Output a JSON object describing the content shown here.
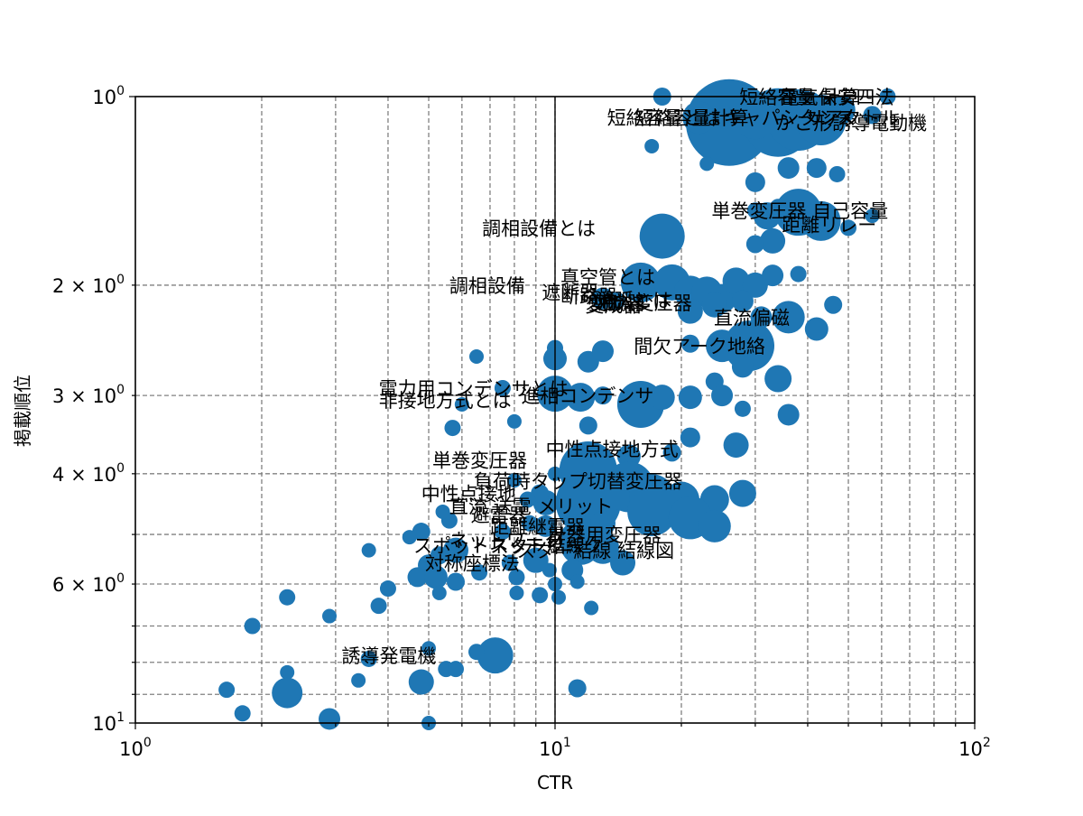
{
  "chart_data": {
    "type": "scatter",
    "title": "",
    "xlabel": "CTR",
    "ylabel": "掲載順位",
    "x_scale": "log",
    "y_scale": "log",
    "y_inverted": true,
    "xlim": [
      1,
      100
    ],
    "ylim": [
      10,
      1
    ],
    "grid": true,
    "legend": "none",
    "color": "#1f77b4",
    "x_ticks": [
      {
        "value": 1,
        "base": "10",
        "exp": "0"
      },
      {
        "value": 10,
        "base": "10",
        "exp": "1"
      },
      {
        "value": 100,
        "base": "10",
        "exp": "2"
      }
    ],
    "y_ticks": [
      {
        "value": 1,
        "base": "10",
        "exp": "0"
      },
      {
        "value": 2,
        "base": "2 × 10",
        "exp": "0"
      },
      {
        "value": 3,
        "base": "3 × 10",
        "exp": "0"
      },
      {
        "value": 4,
        "base": "4 × 10",
        "exp": "0"
      },
      {
        "value": 6,
        "base": "6 × 10",
        "exp": "0"
      },
      {
        "value": 10,
        "base": "10",
        "exp": "1"
      }
    ],
    "points": [
      {
        "x": 26,
        "y": 1.1,
        "s": 48
      },
      {
        "x": 34,
        "y": 1.1,
        "s": 38
      },
      {
        "x": 38,
        "y": 1.09,
        "s": 34
      },
      {
        "x": 43,
        "y": 1.09,
        "s": 28
      },
      {
        "x": 30,
        "y": 1.08,
        "s": 24
      },
      {
        "x": 48,
        "y": 1.05,
        "s": 16
      },
      {
        "x": 22,
        "y": 1.08,
        "s": 18
      },
      {
        "x": 57,
        "y": 1.07,
        "s": 10
      },
      {
        "x": 18,
        "y": 1.0,
        "s": 10
      },
      {
        "x": 62,
        "y": 1.0,
        "s": 9
      },
      {
        "x": 41,
        "y": 1.01,
        "s": 8
      },
      {
        "x": 17,
        "y": 1.2,
        "s": 8
      },
      {
        "x": 23,
        "y": 1.28,
        "s": 8
      },
      {
        "x": 36,
        "y": 1.3,
        "s": 12
      },
      {
        "x": 42,
        "y": 1.3,
        "s": 11
      },
      {
        "x": 47,
        "y": 1.33,
        "s": 9
      },
      {
        "x": 30,
        "y": 1.37,
        "s": 11
      },
      {
        "x": 38,
        "y": 1.53,
        "s": 26
      },
      {
        "x": 43,
        "y": 1.58,
        "s": 22
      },
      {
        "x": 32,
        "y": 1.55,
        "s": 15
      },
      {
        "x": 50,
        "y": 1.62,
        "s": 9
      },
      {
        "x": 57,
        "y": 1.55,
        "s": 8
      },
      {
        "x": 30,
        "y": 1.52,
        "s": 9
      },
      {
        "x": 34,
        "y": 1.5,
        "s": 9
      },
      {
        "x": 33,
        "y": 1.7,
        "s": 14
      },
      {
        "x": 30,
        "y": 1.72,
        "s": 10
      },
      {
        "x": 18,
        "y": 1.67,
        "s": 25
      },
      {
        "x": 16,
        "y": 1.98,
        "s": 22
      },
      {
        "x": 19,
        "y": 1.98,
        "s": 20
      },
      {
        "x": 21,
        "y": 2.05,
        "s": 18
      },
      {
        "x": 23,
        "y": 2.05,
        "s": 17
      },
      {
        "x": 25,
        "y": 2.1,
        "s": 16
      },
      {
        "x": 27,
        "y": 1.97,
        "s": 15
      },
      {
        "x": 30,
        "y": 2.0,
        "s": 14
      },
      {
        "x": 33,
        "y": 1.93,
        "s": 12
      },
      {
        "x": 24,
        "y": 2.15,
        "s": 14
      },
      {
        "x": 21,
        "y": 2.2,
        "s": 14
      },
      {
        "x": 13,
        "y": 2.1,
        "s": 12
      },
      {
        "x": 14,
        "y": 2.12,
        "s": 10
      },
      {
        "x": 28,
        "y": 2.12,
        "s": 12
      },
      {
        "x": 36,
        "y": 2.25,
        "s": 18
      },
      {
        "x": 42,
        "y": 2.35,
        "s": 13
      },
      {
        "x": 46,
        "y": 2.15,
        "s": 10
      },
      {
        "x": 31,
        "y": 2.25,
        "s": 12
      },
      {
        "x": 38,
        "y": 1.92,
        "s": 9
      },
      {
        "x": 29,
        "y": 2.5,
        "s": 28
      },
      {
        "x": 25,
        "y": 2.5,
        "s": 18
      },
      {
        "x": 21,
        "y": 2.48,
        "s": 10
      },
      {
        "x": 28,
        "y": 2.7,
        "s": 12
      },
      {
        "x": 34,
        "y": 2.82,
        "s": 15
      },
      {
        "x": 24,
        "y": 2.85,
        "s": 10
      },
      {
        "x": 12,
        "y": 2.65,
        "s": 12
      },
      {
        "x": 10,
        "y": 2.52,
        "s": 9
      },
      {
        "x": 13,
        "y": 2.55,
        "s": 12
      },
      {
        "x": 10,
        "y": 2.62,
        "s": 13
      },
      {
        "x": 6.5,
        "y": 2.6,
        "s": 8
      },
      {
        "x": 10,
        "y": 2.98,
        "s": 20
      },
      {
        "x": 11.5,
        "y": 3.02,
        "s": 16
      },
      {
        "x": 16,
        "y": 3.1,
        "s": 26
      },
      {
        "x": 18,
        "y": 3.02,
        "s": 14
      },
      {
        "x": 21,
        "y": 3.02,
        "s": 13
      },
      {
        "x": 25,
        "y": 3.0,
        "s": 12
      },
      {
        "x": 13,
        "y": 3.0,
        "s": 10
      },
      {
        "x": 36,
        "y": 3.22,
        "s": 12
      },
      {
        "x": 28,
        "y": 3.15,
        "s": 9
      },
      {
        "x": 7.5,
        "y": 2.92,
        "s": 9
      },
      {
        "x": 6,
        "y": 3.1,
        "s": 8
      },
      {
        "x": 12,
        "y": 3.35,
        "s": 10
      },
      {
        "x": 8,
        "y": 3.3,
        "s": 8
      },
      {
        "x": 5.7,
        "y": 3.38,
        "s": 9
      },
      {
        "x": 27,
        "y": 3.6,
        "s": 14
      },
      {
        "x": 21,
        "y": 3.5,
        "s": 11
      },
      {
        "x": 15,
        "y": 3.75,
        "s": 13
      },
      {
        "x": 19,
        "y": 3.7,
        "s": 10
      },
      {
        "x": 12,
        "y": 3.95,
        "s": 32
      },
      {
        "x": 12,
        "y": 4.45,
        "s": 36
      },
      {
        "x": 15,
        "y": 4.2,
        "s": 28
      },
      {
        "x": 17,
        "y": 4.35,
        "s": 25
      },
      {
        "x": 20,
        "y": 4.4,
        "s": 20
      },
      {
        "x": 24,
        "y": 4.4,
        "s": 16
      },
      {
        "x": 28,
        "y": 4.3,
        "s": 15
      },
      {
        "x": 17,
        "y": 4.6,
        "s": 27
      },
      {
        "x": 21,
        "y": 4.7,
        "s": 24
      },
      {
        "x": 24,
        "y": 4.85,
        "s": 18
      },
      {
        "x": 13,
        "y": 4.8,
        "s": 14
      },
      {
        "x": 9.5,
        "y": 4.45,
        "s": 14
      },
      {
        "x": 9.2,
        "y": 4.3,
        "s": 10
      },
      {
        "x": 8.6,
        "y": 4.4,
        "s": 9
      },
      {
        "x": 8,
        "y": 4.1,
        "s": 8
      },
      {
        "x": 10,
        "y": 4.0,
        "s": 8
      },
      {
        "x": 11.5,
        "y": 5.2,
        "s": 22
      },
      {
        "x": 13,
        "y": 5.25,
        "s": 18
      },
      {
        "x": 14.5,
        "y": 5.55,
        "s": 14
      },
      {
        "x": 11,
        "y": 5.0,
        "s": 12
      },
      {
        "x": 9.5,
        "y": 4.85,
        "s": 12
      },
      {
        "x": 11,
        "y": 5.7,
        "s": 12
      },
      {
        "x": 9,
        "y": 5.5,
        "s": 14
      },
      {
        "x": 5.8,
        "y": 5.3,
        "s": 14
      },
      {
        "x": 5,
        "y": 5.6,
        "s": 12
      },
      {
        "x": 5.3,
        "y": 5.4,
        "s": 10
      },
      {
        "x": 4.7,
        "y": 5.85,
        "s": 11
      },
      {
        "x": 5.2,
        "y": 5.85,
        "s": 13
      },
      {
        "x": 5.8,
        "y": 5.95,
        "s": 10
      },
      {
        "x": 6.6,
        "y": 5.75,
        "s": 9
      },
      {
        "x": 5.3,
        "y": 6.2,
        "s": 8
      },
      {
        "x": 4.8,
        "y": 4.95,
        "s": 10
      },
      {
        "x": 4.5,
        "y": 5.05,
        "s": 8
      },
      {
        "x": 5.6,
        "y": 4.75,
        "s": 9
      },
      {
        "x": 5.4,
        "y": 4.6,
        "s": 8
      },
      {
        "x": 7.5,
        "y": 4.95,
        "s": 9
      },
      {
        "x": 8.7,
        "y": 4.8,
        "s": 9
      },
      {
        "x": 7.8,
        "y": 5.55,
        "s": 9
      },
      {
        "x": 8.1,
        "y": 5.85,
        "s": 9
      },
      {
        "x": 9.2,
        "y": 6.25,
        "s": 9
      },
      {
        "x": 8.1,
        "y": 6.2,
        "s": 8
      },
      {
        "x": 10,
        "y": 6.0,
        "s": 8
      },
      {
        "x": 10.2,
        "y": 6.3,
        "s": 8
      },
      {
        "x": 9.7,
        "y": 5.7,
        "s": 8
      },
      {
        "x": 11.3,
        "y": 5.95,
        "s": 8
      },
      {
        "x": 3.6,
        "y": 5.3,
        "s": 8
      },
      {
        "x": 4.0,
        "y": 6.1,
        "s": 9
      },
      {
        "x": 3.8,
        "y": 6.5,
        "s": 9
      },
      {
        "x": 2.3,
        "y": 6.3,
        "s": 9
      },
      {
        "x": 2.9,
        "y": 6.75,
        "s": 8
      },
      {
        "x": 1.9,
        "y": 7.0,
        "s": 9
      },
      {
        "x": 12.2,
        "y": 6.55,
        "s": 8
      },
      {
        "x": 7.2,
        "y": 7.8,
        "s": 20
      },
      {
        "x": 6.5,
        "y": 7.7,
        "s": 9
      },
      {
        "x": 5.0,
        "y": 7.6,
        "s": 8
      },
      {
        "x": 5.5,
        "y": 8.2,
        "s": 9
      },
      {
        "x": 5.8,
        "y": 8.2,
        "s": 9
      },
      {
        "x": 3.6,
        "y": 7.9,
        "s": 9
      },
      {
        "x": 2.3,
        "y": 8.3,
        "s": 8
      },
      {
        "x": 3.4,
        "y": 8.55,
        "s": 8
      },
      {
        "x": 4.8,
        "y": 8.6,
        "s": 14
      },
      {
        "x": 2.3,
        "y": 8.95,
        "s": 17
      },
      {
        "x": 1.65,
        "y": 8.85,
        "s": 9
      },
      {
        "x": 11.3,
        "y": 8.8,
        "s": 10
      },
      {
        "x": 1.8,
        "y": 9.65,
        "s": 9
      },
      {
        "x": 2.9,
        "y": 9.85,
        "s": 12
      },
      {
        "x": 5,
        "y": 10.0,
        "s": 8
      }
    ],
    "labels": [
      {
        "text": "電気保安四法",
        "x": 34.4,
        "y": 1.0
      },
      {
        "text": "短絡容量 計算",
        "x": 27.5,
        "y": 1.0
      },
      {
        "text": "短絡容量とは",
        "x": 13.3,
        "y": 1.08
      },
      {
        "text": "短絡容量計算",
        "x": 15.5,
        "y": 1.08
      },
      {
        "text": "キャパシタンス",
        "x": 25.2,
        "y": 1.08
      },
      {
        "text": "リアクトル",
        "x": 39.5,
        "y": 1.08
      },
      {
        "text": "かご形誘導電動機",
        "x": 33.5,
        "y": 1.1
      },
      {
        "text": "単巻変圧器 自己容量",
        "x": 23.6,
        "y": 1.52
      },
      {
        "text": "距離リレー",
        "x": 34.7,
        "y": 1.6
      },
      {
        "text": "調相設備とは",
        "x": 6.7,
        "y": 1.62
      },
      {
        "text": "調相設備",
        "x": 5.6,
        "y": 2.0
      },
      {
        "text": "真空管とは",
        "x": 10.3,
        "y": 1.94
      },
      {
        "text": "遮断器",
        "x": 9.3,
        "y": 2.05
      },
      {
        "text": "断路器",
        "x": 10.3,
        "y": 2.08
      },
      {
        "text": "消弧とは",
        "x": 12.5,
        "y": 2.11
      },
      {
        "text": "変流器",
        "x": 12.0,
        "y": 2.13
      },
      {
        "text": "変成器",
        "x": 11.8,
        "y": 2.15
      },
      {
        "text": "油入変圧器",
        "x": 12.6,
        "y": 2.13
      },
      {
        "text": "直流偏磁",
        "x": 23.9,
        "y": 2.25
      },
      {
        "text": "間欠アーク地絡",
        "x": 15.4,
        "y": 2.5
      },
      {
        "text": "電力用コンデンサとは",
        "x": 3.8,
        "y": 2.92
      },
      {
        "text": "進相コンデンサ",
        "x": 8.3,
        "y": 3.0
      },
      {
        "text": "非接地方式とは",
        "x": 3.8,
        "y": 3.05
      },
      {
        "text": "中性点接地方式",
        "x": 9.5,
        "y": 3.65
      },
      {
        "text": "単巻変圧器",
        "x": 5.1,
        "y": 3.8
      },
      {
        "text": "負荷時タップ切替変圧器",
        "x": 6.4,
        "y": 4.1
      },
      {
        "text": "中性点接地",
        "x": 4.8,
        "y": 4.3
      },
      {
        "text": "直流 送電 メリット",
        "x": 5.6,
        "y": 4.5
      },
      {
        "text": "避雷器",
        "x": 6.3,
        "y": 4.65
      },
      {
        "text": "距離継電器",
        "x": 7.0,
        "y": 4.85
      },
      {
        "text": "計器用変圧器",
        "x": 9.6,
        "y": 5.0
      },
      {
        "text": "ネットワーク",
        "x": 5.6,
        "y": 5.1
      },
      {
        "text": "スター結線",
        "x": 7.0,
        "y": 5.2
      },
      {
        "text": "スポットネットワーク",
        "x": 4.6,
        "y": 5.2
      },
      {
        "text": "スター結線 結線図",
        "x": 8.1,
        "y": 5.3
      },
      {
        "text": "対称座標法",
        "x": 4.9,
        "y": 5.55
      },
      {
        "text": "誘導発電機",
        "x": 3.1,
        "y": 7.8
      }
    ]
  }
}
